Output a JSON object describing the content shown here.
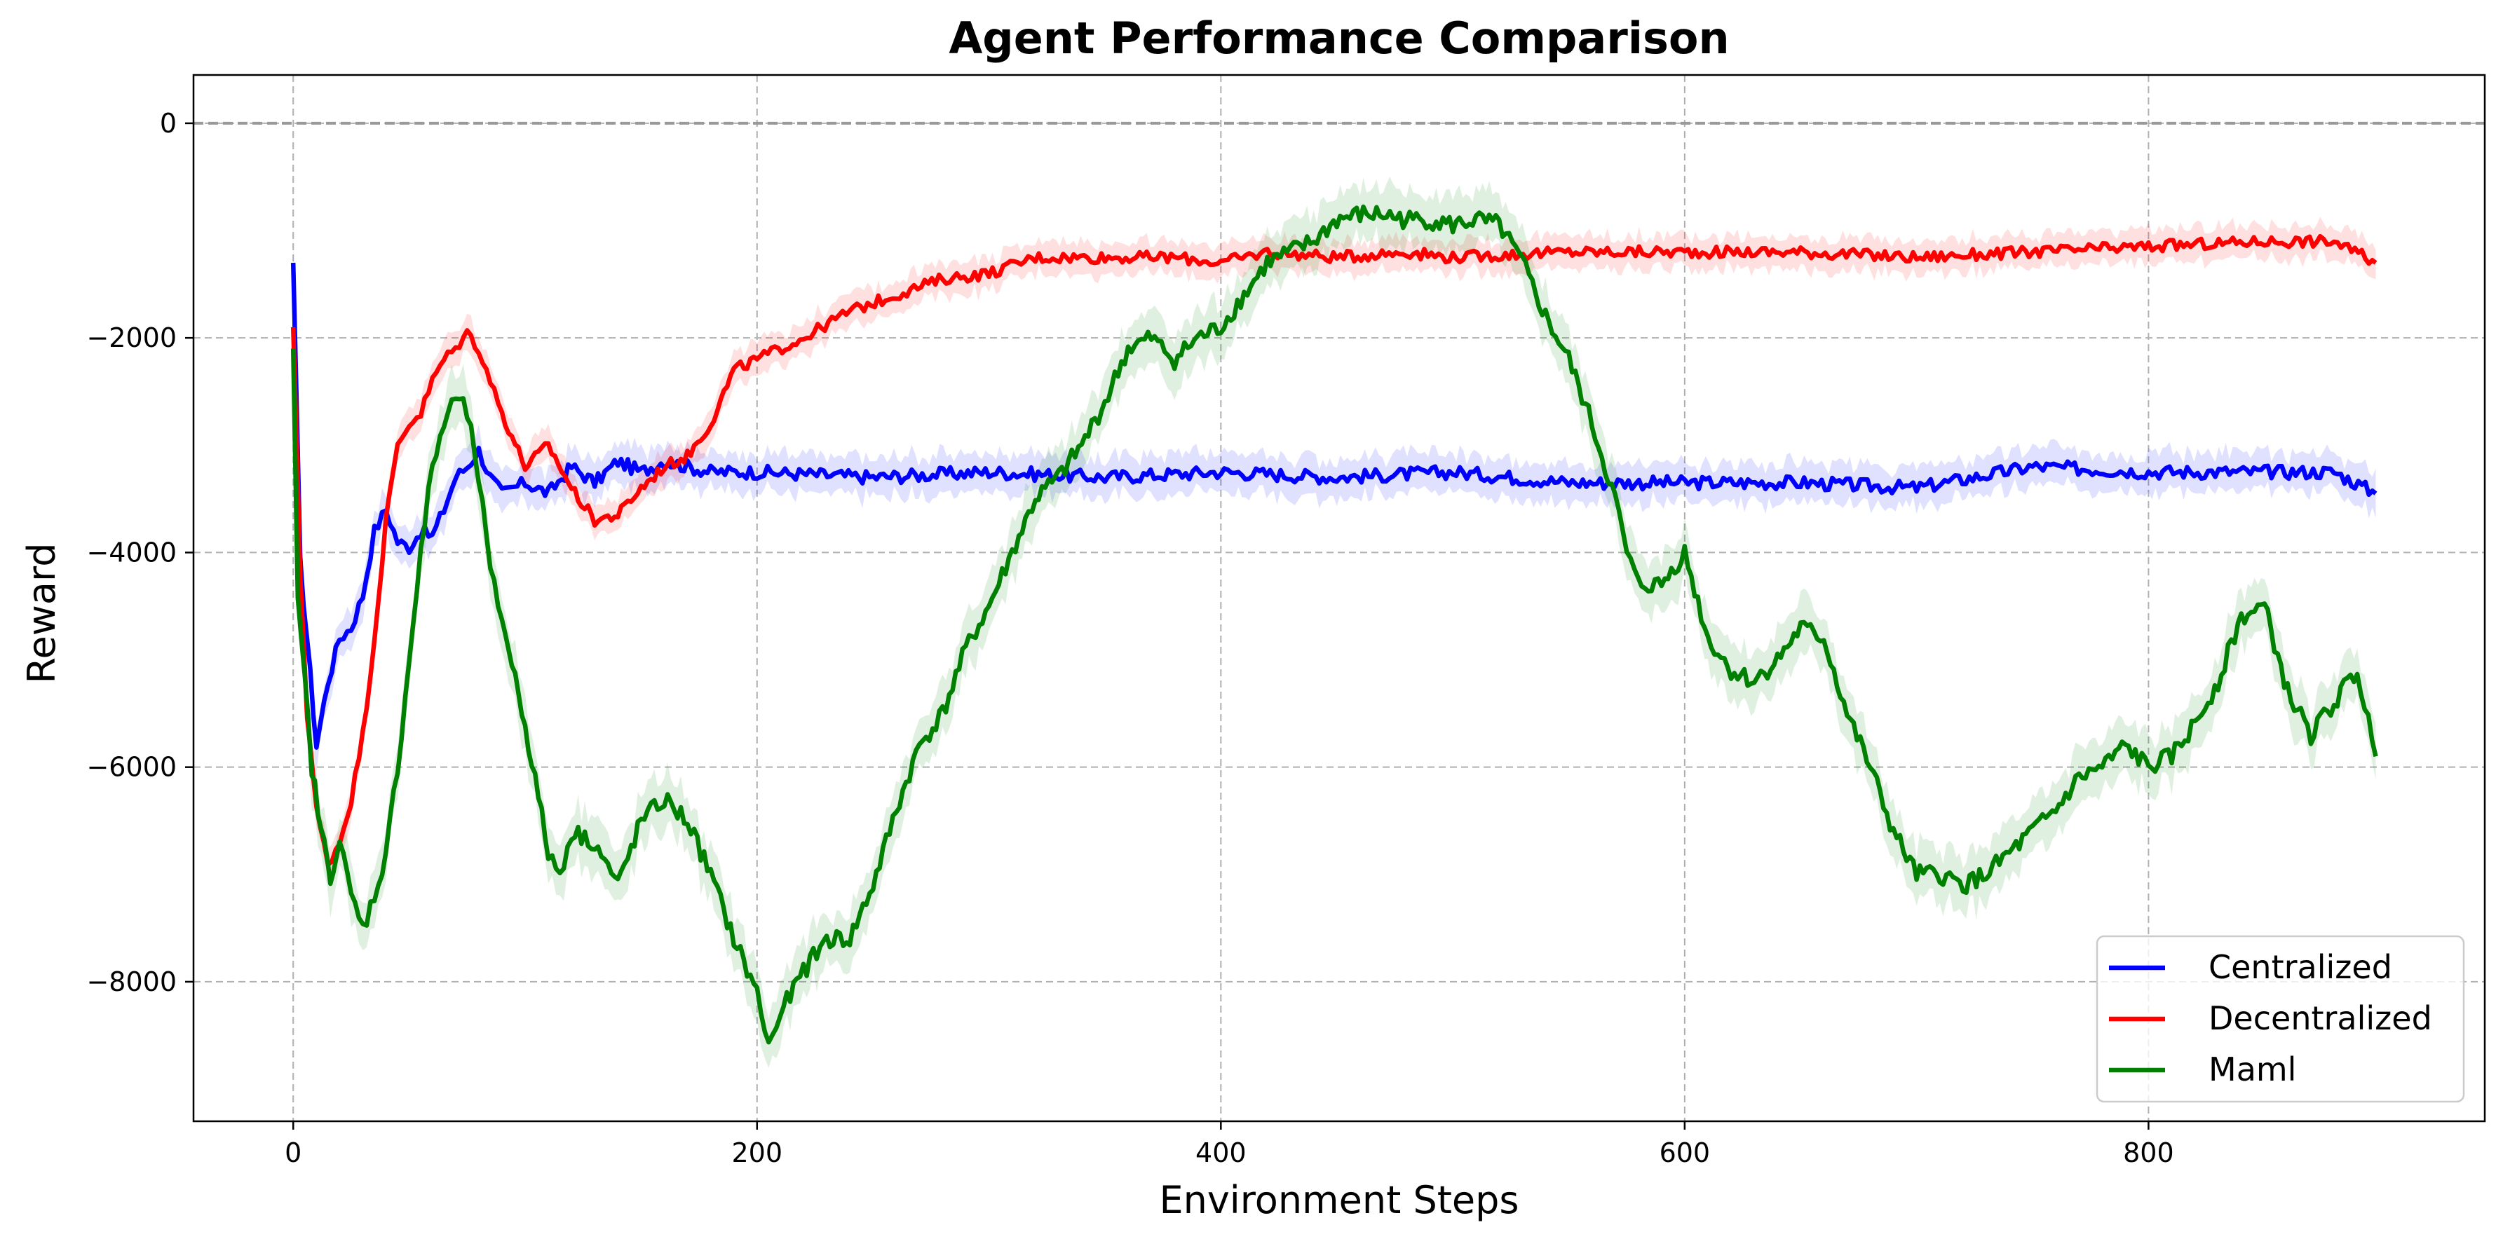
{
  "chart_data": {
    "type": "line",
    "title": "Agent Performance Comparison",
    "xlabel": "Environment Steps",
    "ylabel": "Reward",
    "xlim": [
      -43,
      945
    ],
    "ylim": [
      -9300,
      450
    ],
    "x_ticks": [
      0,
      200,
      400,
      600,
      800
    ],
    "x_tick_labels": [
      "0",
      "200",
      "400",
      "600",
      "800"
    ],
    "y_ticks": [
      0,
      -2000,
      -4000,
      -6000,
      -8000
    ],
    "y_tick_labels": [
      "0",
      "−2000",
      "−4000",
      "−6000",
      "−8000"
    ],
    "grid": true,
    "reference_line": {
      "y": 0,
      "style": "dashed",
      "color": "#999999"
    },
    "legend": {
      "position": "bottom-right"
    },
    "series": [
      {
        "name": "Centralized",
        "color": "#0000ff",
        "band": 180,
        "x": [
          0,
          3,
          6,
          10,
          15,
          20,
          25,
          30,
          35,
          40,
          45,
          50,
          55,
          60,
          65,
          70,
          75,
          80,
          85,
          90,
          95,
          100,
          110,
          120,
          130,
          140,
          150,
          160,
          170,
          180,
          200,
          250,
          300,
          350,
          400,
          450,
          500,
          550,
          600,
          650,
          700,
          750,
          800,
          850,
          880,
          898
        ],
        "y": [
          -1300,
          -4100,
          -4800,
          -5800,
          -5200,
          -4800,
          -4700,
          -4400,
          -3800,
          -3600,
          -3900,
          -3950,
          -3800,
          -3850,
          -3600,
          -3300,
          -3200,
          -3050,
          -3300,
          -3450,
          -3400,
          -3350,
          -3450,
          -3200,
          -3350,
          -3150,
          -3250,
          -3150,
          -3200,
          -3250,
          -3250,
          -3300,
          -3250,
          -3300,
          -3250,
          -3300,
          -3250,
          -3350,
          -3350,
          -3350,
          -3400,
          -3200,
          -3250,
          -3250,
          -3250,
          -3450
        ]
      },
      {
        "name": "Decentralized",
        "color": "#ff0000",
        "band": 150,
        "x": [
          0,
          3,
          6,
          10,
          15,
          20,
          25,
          30,
          35,
          40,
          45,
          50,
          55,
          60,
          65,
          70,
          75,
          80,
          85,
          90,
          100,
          110,
          120,
          130,
          140,
          150,
          160,
          170,
          180,
          190,
          200,
          220,
          240,
          260,
          280,
          300,
          320,
          350,
          380,
          400,
          420,
          450,
          480,
          500,
          550,
          600,
          650,
          700,
          750,
          800,
          850,
          880,
          898
        ],
        "y": [
          -1900,
          -4200,
          -5500,
          -6400,
          -6900,
          -6700,
          -6300,
          -5700,
          -4800,
          -3700,
          -3000,
          -2800,
          -2700,
          -2400,
          -2200,
          -2100,
          -1950,
          -2100,
          -2400,
          -2700,
          -3200,
          -3000,
          -3400,
          -3700,
          -3650,
          -3400,
          -3200,
          -3100,
          -2800,
          -2300,
          -2200,
          -2000,
          -1750,
          -1600,
          -1450,
          -1400,
          -1250,
          -1250,
          -1250,
          -1300,
          -1200,
          -1250,
          -1200,
          -1250,
          -1200,
          -1200,
          -1200,
          -1250,
          -1200,
          -1150,
          -1100,
          -1100,
          -1300
        ]
      },
      {
        "name": "Maml",
        "color": "#008000",
        "band": 250,
        "x": [
          0,
          2,
          5,
          8,
          12,
          16,
          20,
          25,
          30,
          35,
          40,
          45,
          50,
          55,
          60,
          65,
          70,
          75,
          80,
          85,
          90,
          100,
          110,
          115,
          120,
          130,
          140,
          150,
          160,
          170,
          180,
          190,
          200,
          205,
          210,
          220,
          230,
          240,
          250,
          260,
          270,
          280,
          290,
          300,
          310,
          320,
          330,
          340,
          350,
          360,
          370,
          380,
          390,
          400,
          410,
          420,
          430,
          440,
          450,
          460,
          470,
          480,
          490,
          500,
          510,
          520,
          530,
          540,
          550,
          560,
          570,
          575,
          580,
          590,
          600,
          610,
          620,
          630,
          640,
          650,
          660,
          670,
          680,
          690,
          700,
          710,
          720,
          730,
          740,
          750,
          760,
          770,
          780,
          790,
          800,
          810,
          820,
          830,
          840,
          850,
          860,
          870,
          880,
          890,
          898
        ],
        "y": [
          -2100,
          -4500,
          -5200,
          -6000,
          -6600,
          -7000,
          -6700,
          -7200,
          -7500,
          -7200,
          -6800,
          -6000,
          -5000,
          -4000,
          -3200,
          -2800,
          -2550,
          -2700,
          -3300,
          -4200,
          -4600,
          -5600,
          -6800,
          -7000,
          -6600,
          -6700,
          -7100,
          -6500,
          -6300,
          -6500,
          -7000,
          -7600,
          -8100,
          -8600,
          -8300,
          -7900,
          -7600,
          -7600,
          -7100,
          -6400,
          -5800,
          -5500,
          -4900,
          -4500,
          -4000,
          -3500,
          -3300,
          -3000,
          -2600,
          -2100,
          -2000,
          -2200,
          -2000,
          -1900,
          -1600,
          -1300,
          -1200,
          -1100,
          -900,
          -850,
          -850,
          -900,
          -900,
          -950,
          -900,
          -950,
          -1300,
          -1800,
          -2200,
          -2800,
          -3500,
          -4000,
          -4300,
          -4300,
          -4000,
          -4800,
          -5100,
          -5200,
          -5000,
          -4700,
          -4800,
          -5500,
          -6000,
          -6600,
          -7000,
          -7000,
          -7100,
          -7000,
          -6800,
          -6600,
          -6400,
          -6100,
          -6000,
          -5800,
          -6000,
          -5900,
          -5600,
          -5200,
          -4600,
          -4500,
          -5300,
          -5700,
          -5400,
          -5100,
          -5900
        ]
      }
    ]
  }
}
